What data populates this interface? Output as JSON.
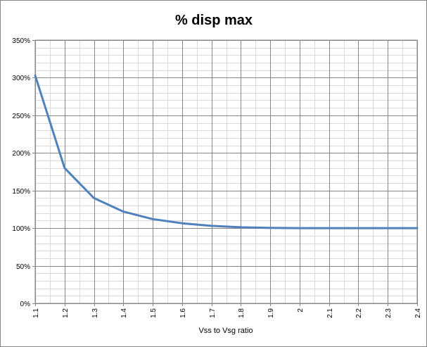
{
  "chart_data": {
    "type": "line",
    "title": "% disp max",
    "xlabel": "Vss to Vsg ratio",
    "ylabel": "",
    "x": [
      1.1,
      1.2,
      1.3,
      1.4,
      1.5,
      1.6,
      1.7,
      1.8,
      1.9,
      2.0,
      2.1,
      2.2,
      2.3,
      2.4
    ],
    "x_tick_labels": [
      "1.1",
      "1.2",
      "1.3",
      "1.4",
      "1.5",
      "1.6",
      "1.7",
      "1.8",
      "1.9",
      "2",
      "2.1",
      "2.2",
      "2.3",
      "2.4"
    ],
    "series": [
      {
        "values": [
          3.03,
          1.8,
          1.4,
          1.22,
          1.12,
          1.065,
          1.03,
          1.012,
          1.003,
          1.0,
          1.0,
          1.0,
          1.0,
          1.0
        ],
        "color": "#4F81BD"
      }
    ],
    "y_ticks": [
      0,
      0.5,
      1.0,
      1.5,
      2.0,
      2.5,
      3.0,
      3.5
    ],
    "y_tick_labels": [
      "0%",
      "50%",
      "100%",
      "150%",
      "200%",
      "250%",
      "300%",
      "350%"
    ],
    "ylim": [
      0,
      3.5
    ],
    "xlim": [
      1.1,
      2.4
    ],
    "y_format": "percent",
    "grid": true,
    "minor_gridlines": true,
    "legend": "none",
    "colors": {
      "line": "#4F81BD",
      "grid": "#868686",
      "minor_grid": "#d9d9d9"
    }
  }
}
